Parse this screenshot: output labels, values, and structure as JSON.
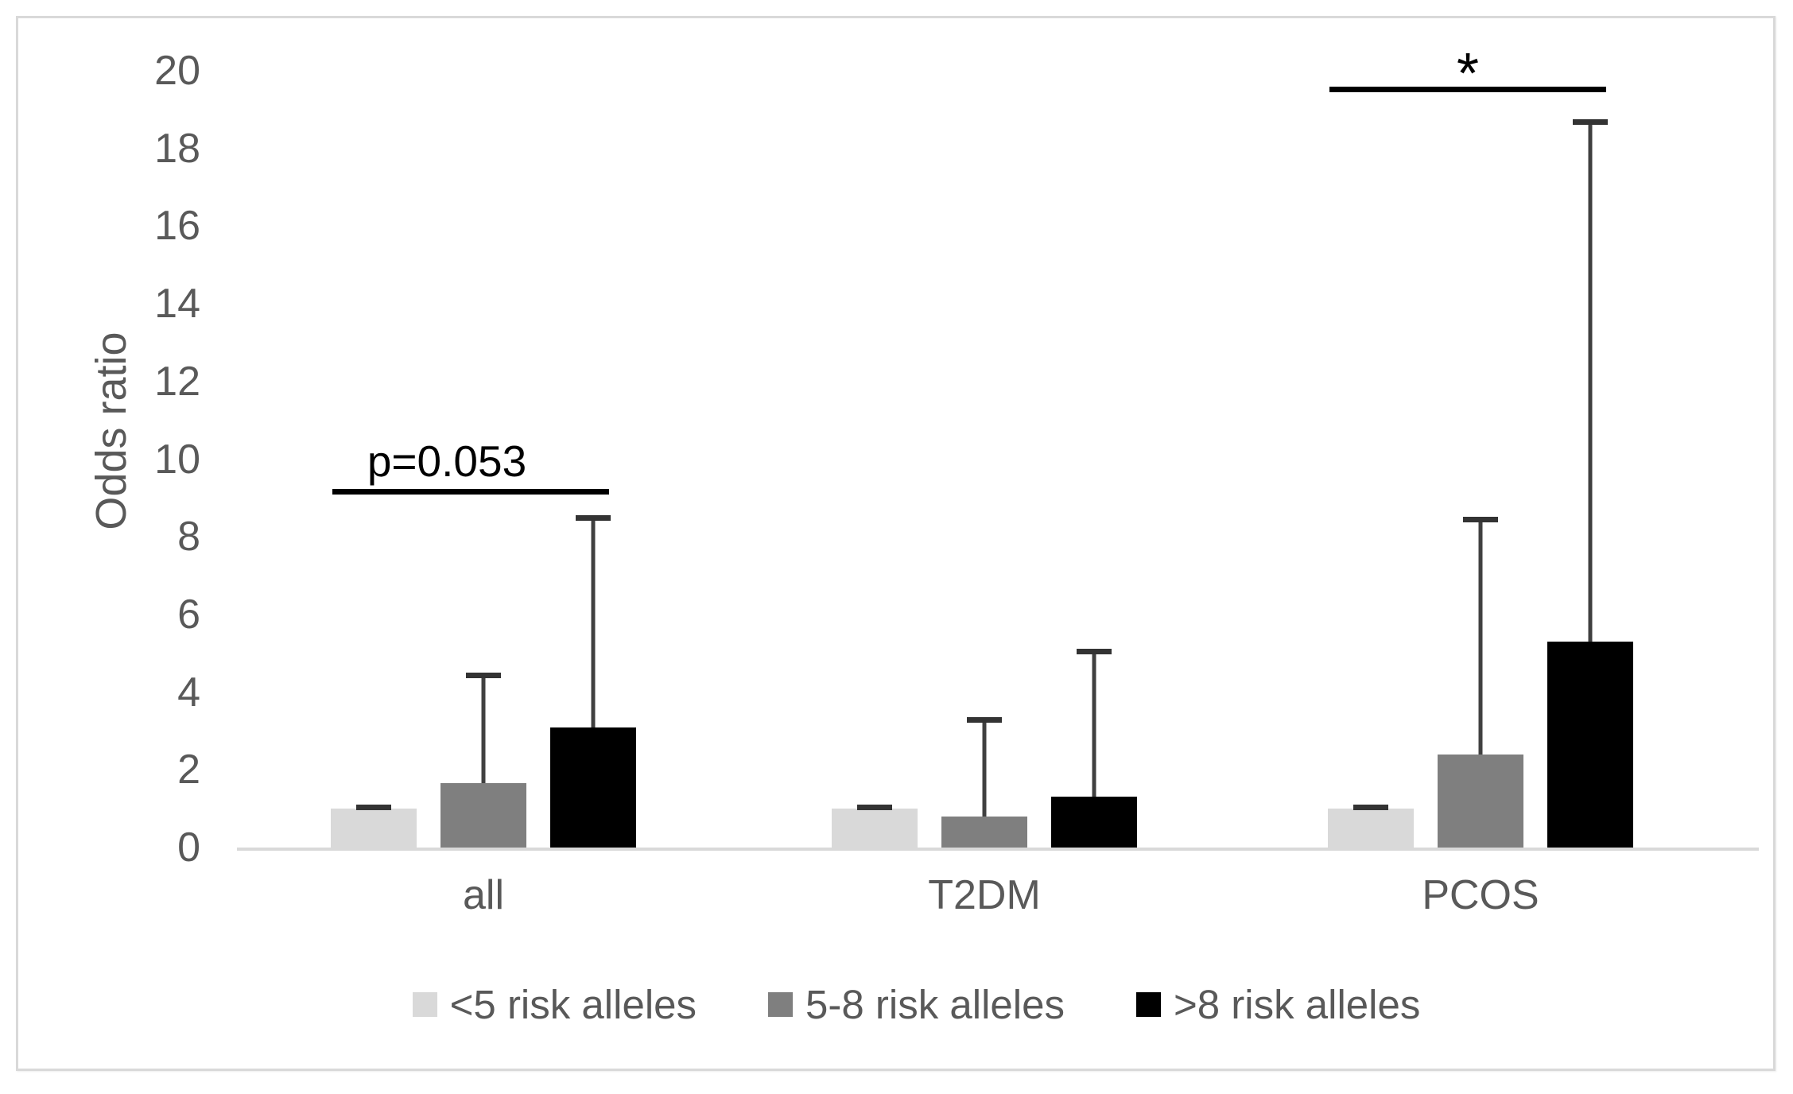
{
  "chart_data": {
    "type": "bar",
    "title": "",
    "xlabel": "",
    "ylabel": "Odds ratio",
    "ylim": [
      0,
      20
    ],
    "y_tick_labels": [
      "0",
      "2",
      "4",
      "6",
      "8",
      "10",
      "12",
      "14",
      "16",
      "18",
      "20"
    ],
    "grid": false,
    "legend_position": "bottom",
    "categories": [
      "all",
      "T2DM",
      "PCOS"
    ],
    "series": [
      {
        "name": "<5 risk alleles",
        "color": "#d9d9d9",
        "values": [
          1.0,
          1.0,
          1.0
        ],
        "error_upper": [
          1.05,
          1.05,
          1.05
        ]
      },
      {
        "name": "5-8 risk alleles",
        "color": "#7f7f7f",
        "values": [
          1.65,
          0.8,
          2.4
        ],
        "error_upper": [
          4.45,
          3.3,
          8.45
        ]
      },
      {
        "name": ">8 risk alleles",
        "color": "#000000",
        "values": [
          3.1,
          1.3,
          5.3
        ],
        "error_upper": [
          8.5,
          5.05,
          18.7
        ]
      }
    ],
    "annotations": [
      {
        "category": "all",
        "label": "p=0.053",
        "line_y": 9.23,
        "from_series": 0,
        "to_series": 2,
        "label_font_px": 55
      },
      {
        "category": "PCOS",
        "label": "*",
        "line_y": 19.6,
        "from_series": 0,
        "to_series": 2,
        "label_font_px": 72
      }
    ],
    "colors": {
      "axis_text": "#595959",
      "baseline": "#d9d9d9",
      "error_bar": "#404040",
      "annotation": "#000000",
      "frame_border": "#d9d9d9"
    }
  }
}
